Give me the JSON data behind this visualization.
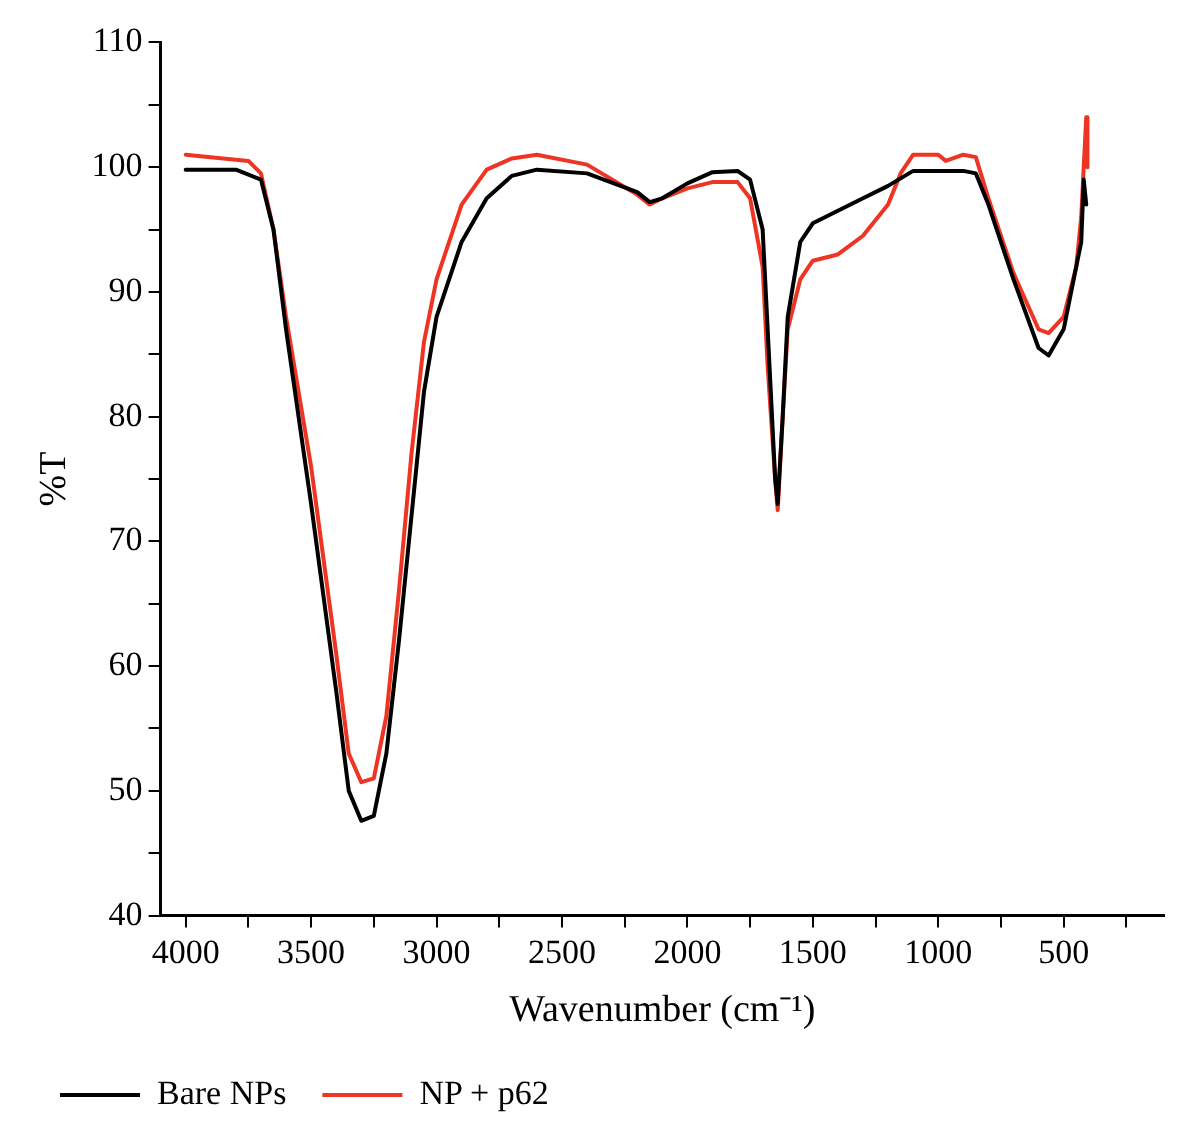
{
  "chart_data": {
    "type": "line",
    "xlabel": "Wavenumber (cm⁻¹)",
    "ylabel": "%T",
    "xlim": [
      4100,
      100
    ],
    "ylim": [
      40,
      110
    ],
    "xticks": [
      4000,
      {
        "value": 3750,
        "label": null
      },
      3500,
      {
        "value": 3250,
        "label": null
      },
      3000,
      {
        "value": 2750,
        "label": null
      },
      2500,
      {
        "value": 2250,
        "label": null
      },
      2000,
      {
        "value": 1750,
        "label": null
      },
      1500,
      {
        "value": 1250,
        "label": null
      },
      1000,
      {
        "value": 750,
        "label": null
      },
      500,
      {
        "value": 250,
        "label": null
      }
    ],
    "yticks": [
      40,
      {
        "value": 45,
        "label": null
      },
      50,
      {
        "value": 55,
        "label": null
      },
      60,
      {
        "value": 65,
        "label": null
      },
      70,
      {
        "value": 75,
        "label": null
      },
      80,
      {
        "value": 85,
        "label": null
      },
      90,
      {
        "value": 95,
        "label": null
      },
      100,
      {
        "value": 105,
        "label": null
      },
      110
    ],
    "grid": false,
    "legend": "bottom",
    "marker": "none",
    "line_style": "solid",
    "series": [
      {
        "name": "Bare NPs",
        "color": "#000000",
        "x": [
          4000,
          3800,
          3700,
          3650,
          3600,
          3500,
          3400,
          3350,
          3300,
          3250,
          3200,
          3150,
          3100,
          3050,
          3000,
          2900,
          2800,
          2700,
          2600,
          2400,
          2200,
          2150,
          2100,
          2000,
          1900,
          1800,
          1750,
          1700,
          1680,
          1650,
          1640,
          1620,
          1600,
          1550,
          1500,
          1400,
          1300,
          1200,
          1100,
          900,
          850,
          800,
          700,
          600,
          560,
          500,
          450,
          430,
          420,
          410
        ],
        "values": [
          99.8,
          99.8,
          99,
          95,
          87,
          73,
          58,
          50,
          47.6,
          48,
          53,
          62,
          72,
          82,
          88,
          94,
          97.5,
          99.3,
          99.8,
          99.5,
          98,
          97.2,
          97.5,
          98.7,
          99.6,
          99.7,
          99,
          95,
          87,
          75,
          73,
          80,
          88,
          94,
          95.5,
          96.5,
          97.5,
          98.5,
          99.7,
          99.7,
          99.5,
          97,
          91,
          85.5,
          84.9,
          87,
          92,
          94,
          99,
          97
        ]
      },
      {
        "name": "NP + p62",
        "color": "#ee3524",
        "x": [
          4000,
          3800,
          3750,
          3700,
          3650,
          3600,
          3500,
          3400,
          3350,
          3300,
          3250,
          3200,
          3150,
          3100,
          3050,
          3000,
          2900,
          2800,
          2700,
          2600,
          2400,
          2200,
          2150,
          2100,
          2000,
          1900,
          1800,
          1750,
          1700,
          1680,
          1650,
          1640,
          1620,
          1600,
          1550,
          1500,
          1400,
          1300,
          1200,
          1150,
          1100,
          1000,
          970,
          900,
          850,
          800,
          700,
          600,
          560,
          500,
          450,
          430,
          420,
          410,
          405
        ],
        "values": [
          101,
          100.6,
          100.5,
          99.5,
          95,
          88,
          76,
          61,
          53,
          50.7,
          51,
          56,
          66,
          77,
          86,
          91,
          97,
          99.8,
          100.7,
          101,
          100.2,
          97.8,
          97,
          97.5,
          98.3,
          98.8,
          98.8,
          97.5,
          92,
          84,
          75,
          72.5,
          80,
          87,
          91,
          92.5,
          93,
          94.5,
          97,
          99.5,
          101,
          101,
          100.5,
          101,
          100.8,
          97.5,
          91.5,
          87,
          86.7,
          88,
          92,
          96,
          100,
          104,
          100
        ]
      }
    ]
  }
}
